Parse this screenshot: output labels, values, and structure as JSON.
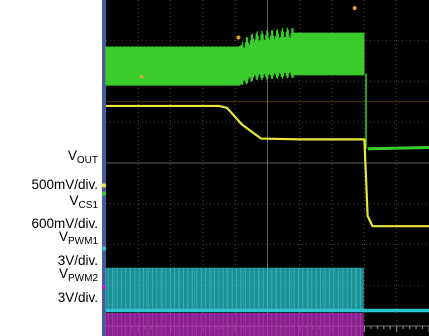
{
  "chart_data": {
    "type": "line",
    "title": "",
    "xlabel": "",
    "ylabel": "",
    "grid": true,
    "divisions": {
      "x": 10,
      "y": 8
    },
    "channels": [
      {
        "name": "V",
        "sub": "OUT",
        "scale": "500mV/div.",
        "color": "#39cc2b"
      },
      {
        "name": "V",
        "sub": "CS1",
        "scale": "600mV/div.",
        "color": "#e8e63a"
      },
      {
        "name": "V",
        "sub": "PWM1",
        "scale": "3V/div.",
        "color": "#2cc5cf"
      },
      {
        "name": "V",
        "sub": "PWM2",
        "scale": "3V/div.",
        "color": "#b22fb8"
      }
    ],
    "markers": {
      "color": "#e8a030"
    },
    "traces": {
      "vout": {
        "band_top": [
          [
            0,
            1.14
          ],
          [
            4.12,
            1.14
          ],
          [
            4.6,
            0.9
          ],
          [
            5.6,
            0.8
          ],
          [
            8.0,
            0.8
          ],
          [
            8.1,
            0
          ]
        ],
        "band_bottom": [
          [
            0,
            2.1
          ],
          [
            4.12,
            2.1
          ],
          [
            4.6,
            1.9
          ],
          [
            5.6,
            1.85
          ],
          [
            8.0,
            1.85
          ],
          [
            8.1,
            0
          ]
        ],
        "after": [
          [
            8.1,
            3.65
          ],
          [
            10,
            3.62
          ]
        ]
      },
      "vcs1": [
        [
          0,
          2.6
        ],
        [
          3.5,
          2.6
        ],
        [
          3.75,
          2.65
        ],
        [
          4.2,
          3.05
        ],
        [
          4.8,
          3.4
        ],
        [
          6.0,
          3.42
        ],
        [
          8.0,
          3.42
        ],
        [
          8.1,
          5.3
        ],
        [
          8.25,
          5.55
        ],
        [
          10,
          5.55
        ]
      ],
      "pwm1": {
        "top": 6.57,
        "bottom": 7.62,
        "end": 8.0,
        "after": 7.62
      },
      "pwm2": {
        "top": 7.68,
        "bottom": 8.3,
        "end": 8.0
      }
    }
  }
}
